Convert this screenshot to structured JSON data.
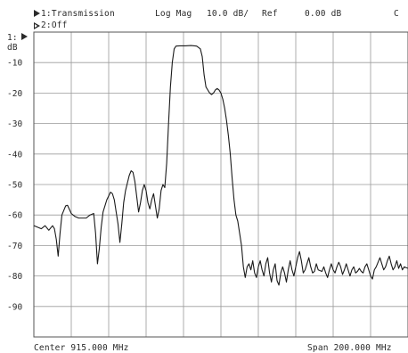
{
  "header": {
    "channel1": "1:Transmission",
    "format": "Log Mag",
    "scale": "10.0 dB/",
    "ref": "Ref",
    "ref_value": "0.00 dB",
    "status": "C",
    "channel2": "2:Off",
    "ref_level_marker": "1:",
    "unit": "dB"
  },
  "footer": {
    "center": "Center 915.000 MHz",
    "span": "Span 200.000 MHz"
  },
  "chart_data": {
    "type": "line",
    "title": "",
    "xlabel": "",
    "ylabel": "dB",
    "xlim": [
      815,
      1015
    ],
    "ylim": [
      -100,
      0
    ],
    "x_unit": "MHz",
    "grid": true,
    "yticks": [
      -10,
      -20,
      -30,
      -40,
      -50,
      -60,
      -70,
      -80,
      -90
    ],
    "ytick_labels": [
      "-10",
      "-20",
      "-30",
      "-40",
      "-50",
      "-60",
      "-70",
      "-80",
      "-90"
    ],
    "series": [
      {
        "values": [
          [
            815,
            -63.5
          ],
          [
            817,
            -64
          ],
          [
            819,
            -64.5
          ],
          [
            821,
            -63.5
          ],
          [
            823,
            -65
          ],
          [
            825,
            -63.5
          ],
          [
            826,
            -64.5
          ],
          [
            827,
            -68
          ],
          [
            828,
            -73.5
          ],
          [
            829,
            -66
          ],
          [
            830,
            -60
          ],
          [
            832,
            -57
          ],
          [
            833,
            -56.8
          ],
          [
            835,
            -59.5
          ],
          [
            837,
            -60.5
          ],
          [
            839,
            -61
          ],
          [
            841,
            -61
          ],
          [
            843,
            -61
          ],
          [
            845,
            -60
          ],
          [
            847,
            -59.5
          ],
          [
            848,
            -66
          ],
          [
            849,
            -76
          ],
          [
            850,
            -71
          ],
          [
            851,
            -64
          ],
          [
            852,
            -59
          ],
          [
            854,
            -55
          ],
          [
            856,
            -52.5
          ],
          [
            857,
            -53
          ],
          [
            858,
            -55
          ],
          [
            859,
            -59
          ],
          [
            860,
            -63
          ],
          [
            861,
            -69
          ],
          [
            862,
            -63
          ],
          [
            863,
            -56
          ],
          [
            864,
            -52
          ],
          [
            865,
            -49.5
          ],
          [
            866,
            -47
          ],
          [
            867,
            -45.5
          ],
          [
            868,
            -46
          ],
          [
            869,
            -49
          ],
          [
            870,
            -54
          ],
          [
            871,
            -59
          ],
          [
            872,
            -56
          ],
          [
            873,
            -52
          ],
          [
            874,
            -50
          ],
          [
            875,
            -52
          ],
          [
            876,
            -56
          ],
          [
            877,
            -58
          ],
          [
            878,
            -55
          ],
          [
            879,
            -53
          ],
          [
            880,
            -57
          ],
          [
            881,
            -61
          ],
          [
            882,
            -58
          ],
          [
            883,
            -52
          ],
          [
            884,
            -50
          ],
          [
            885,
            -51
          ],
          [
            886,
            -43
          ],
          [
            887,
            -30
          ],
          [
            888,
            -18
          ],
          [
            889,
            -10
          ],
          [
            890,
            -5.5
          ],
          [
            891,
            -4.6
          ],
          [
            893,
            -4.5
          ],
          [
            896,
            -4.5
          ],
          [
            899,
            -4.4
          ],
          [
            902,
            -4.6
          ],
          [
            904,
            -5.5
          ],
          [
            905,
            -8
          ],
          [
            906,
            -14
          ],
          [
            907,
            -18
          ],
          [
            908,
            -19
          ],
          [
            909,
            -20
          ],
          [
            910,
            -20.5
          ],
          [
            911,
            -20
          ],
          [
            912,
            -19
          ],
          [
            913,
            -18.5
          ],
          [
            914,
            -19
          ],
          [
            915,
            -20
          ],
          [
            916,
            -22
          ],
          [
            917,
            -25
          ],
          [
            918,
            -29
          ],
          [
            919,
            -34
          ],
          [
            920,
            -40
          ],
          [
            921,
            -48
          ],
          [
            922,
            -55
          ],
          [
            923,
            -60
          ],
          [
            924,
            -62
          ],
          [
            925,
            -66
          ],
          [
            926,
            -70
          ],
          [
            927,
            -77
          ],
          [
            928,
            -80.5
          ],
          [
            929,
            -77
          ],
          [
            930,
            -76
          ],
          [
            931,
            -78
          ],
          [
            932,
            -75
          ],
          [
            933,
            -79
          ],
          [
            934,
            -80.5
          ],
          [
            935,
            -77
          ],
          [
            936,
            -75
          ],
          [
            937,
            -78
          ],
          [
            938,
            -80
          ],
          [
            939,
            -76
          ],
          [
            940,
            -74
          ],
          [
            941,
            -79
          ],
          [
            942,
            -82
          ],
          [
            943,
            -78
          ],
          [
            944,
            -76
          ],
          [
            945,
            -81.5
          ],
          [
            946,
            -83
          ],
          [
            947,
            -79
          ],
          [
            948,
            -77
          ],
          [
            949,
            -79
          ],
          [
            950,
            -82
          ],
          [
            951,
            -78
          ],
          [
            952,
            -75
          ],
          [
            953,
            -78
          ],
          [
            954,
            -80
          ],
          [
            955,
            -77
          ],
          [
            956,
            -74
          ],
          [
            957,
            -72
          ],
          [
            958,
            -75
          ],
          [
            959,
            -79
          ],
          [
            960,
            -78
          ],
          [
            961,
            -76
          ],
          [
            962,
            -74
          ],
          [
            963,
            -77
          ],
          [
            964,
            -79
          ],
          [
            965,
            -78.5
          ],
          [
            966,
            -76
          ],
          [
            967,
            -78
          ],
          [
            969,
            -78.5
          ],
          [
            970,
            -77
          ],
          [
            971,
            -79
          ],
          [
            972,
            -80.5
          ],
          [
            973,
            -78
          ],
          [
            974,
            -76
          ],
          [
            975,
            -78
          ],
          [
            976,
            -79
          ],
          [
            977,
            -77
          ],
          [
            978,
            -75.5
          ],
          [
            979,
            -77
          ],
          [
            980,
            -79.5
          ],
          [
            981,
            -78
          ],
          [
            982,
            -76
          ],
          [
            983,
            -78
          ],
          [
            984,
            -80
          ],
          [
            985,
            -78
          ],
          [
            986,
            -77
          ],
          [
            987,
            -79
          ],
          [
            988,
            -78.5
          ],
          [
            989,
            -77.5
          ],
          [
            990,
            -78.5
          ],
          [
            991,
            -79
          ],
          [
            992,
            -77
          ],
          [
            993,
            -76
          ],
          [
            994,
            -78
          ],
          [
            995,
            -80
          ],
          [
            996,
            -81
          ],
          [
            997,
            -78
          ],
          [
            998,
            -77
          ],
          [
            999,
            -75.5
          ],
          [
            1000,
            -74
          ],
          [
            1001,
            -76
          ],
          [
            1002,
            -78
          ],
          [
            1003,
            -77
          ],
          [
            1004,
            -75
          ],
          [
            1005,
            -73.5
          ],
          [
            1006,
            -76
          ],
          [
            1007,
            -78
          ],
          [
            1008,
            -77
          ],
          [
            1009,
            -75
          ],
          [
            1010,
            -77.5
          ],
          [
            1011,
            -76
          ],
          [
            1012,
            -78
          ],
          [
            1013,
            -77
          ],
          [
            1015,
            -77.5
          ]
        ]
      }
    ]
  }
}
